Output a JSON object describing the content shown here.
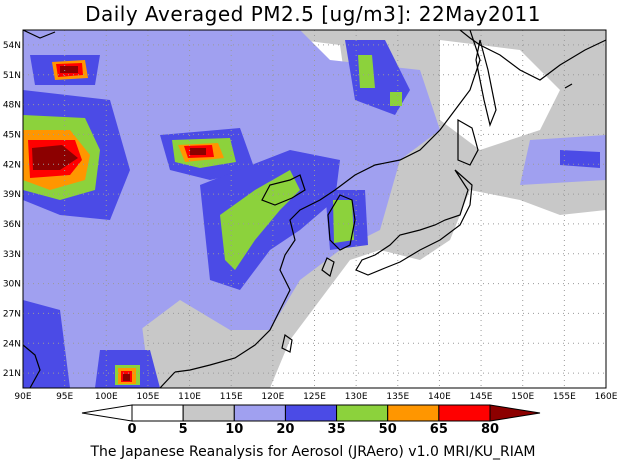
{
  "title": "Daily Averaged PM2.5 [ug/m3]: 22May2011",
  "footer": "The Japanese Reanalysis for Aerosol (JRAero) v1.0 MRI/KU_RIAM",
  "map": {
    "lon_range": [
      90,
      160
    ],
    "lat_range": [
      19.5,
      55.5
    ],
    "x_ticks": [
      "90E",
      "95E",
      "100E",
      "105E",
      "110E",
      "115E",
      "120E",
      "125E",
      "130E",
      "135E",
      "140E",
      "145E",
      "150E",
      "155E",
      "160E"
    ],
    "y_ticks": [
      "21N",
      "24N",
      "27N",
      "30N",
      "33N",
      "36N",
      "39N",
      "42N",
      "45N",
      "48N",
      "51N",
      "54N"
    ],
    "grid": true
  },
  "colorbar": {
    "levels": [
      "0",
      "5",
      "10",
      "20",
      "35",
      "50",
      "65",
      "80"
    ],
    "colors": [
      "#ffffff",
      "#c8c8c8",
      "#a0a0f0",
      "#4b4be6",
      "#8cd23c",
      "#ff9600",
      "#ff0000",
      "#8c0000"
    ]
  }
}
